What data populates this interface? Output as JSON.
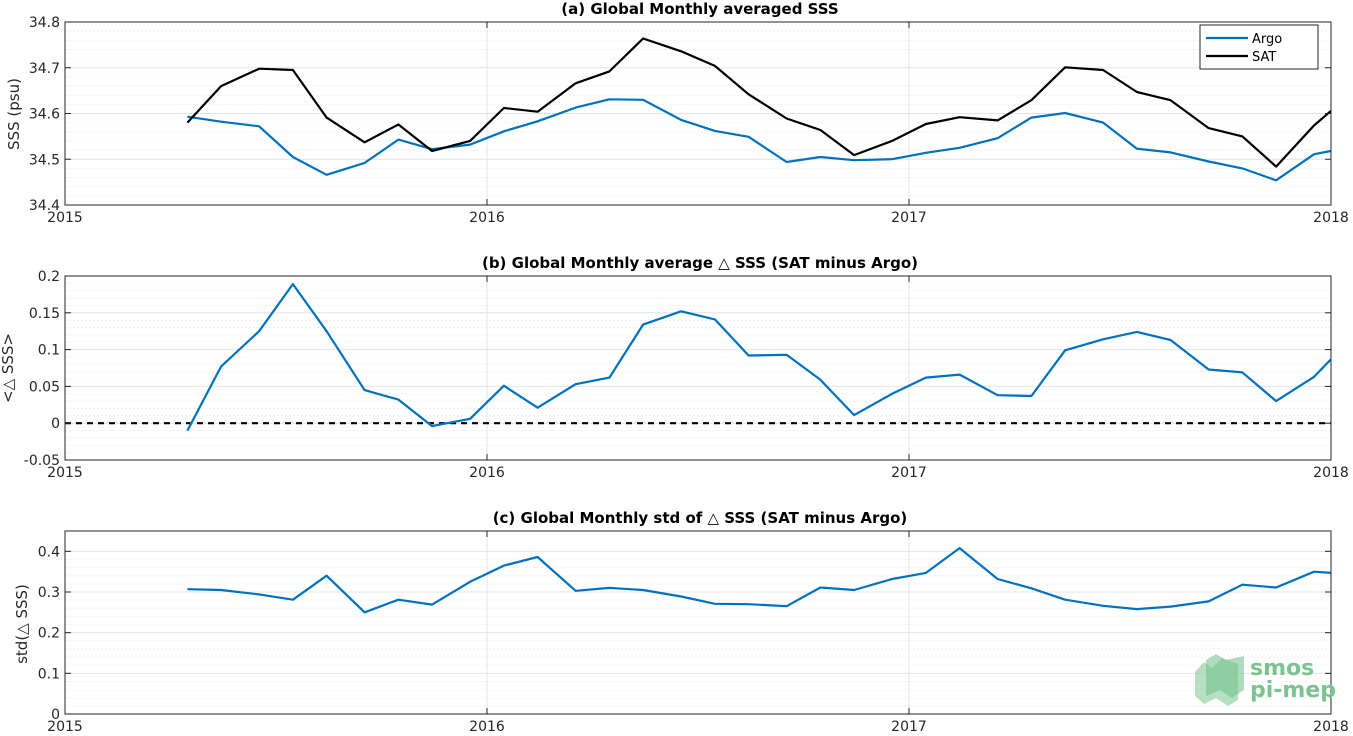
{
  "colors": {
    "argo": "#0072BD",
    "sat": "#000000",
    "grid": "#e4e4e4",
    "axis": "#262626",
    "logo": "#7cc48f"
  },
  "logo": {
    "line1": "smos",
    "line2": "pi-mep"
  },
  "chart_data": [
    {
      "type": "line",
      "title": "(a) Global Monthly averaged SSS",
      "xlabel": "",
      "ylabel": "SSS (psu)",
      "xlim": [
        2015,
        2018
      ],
      "ylim": [
        34.4,
        34.8
      ],
      "xticks": [
        2015,
        2016,
        2017,
        2018
      ],
      "xtick_labels": [
        "2015",
        "2016",
        "2017",
        "2018"
      ],
      "yticks": [
        34.4,
        34.5,
        34.6,
        34.7,
        34.8
      ],
      "ytick_labels": [
        "34.4",
        "34.5",
        "34.6",
        "34.7",
        "34.8"
      ],
      "grid": true,
      "legend": "top-right",
      "x": [
        2015.29,
        2015.37,
        2015.46,
        2015.54,
        2015.62,
        2015.71,
        2015.79,
        2015.87,
        2015.96,
        2016.04,
        2016.12,
        2016.21,
        2016.29,
        2016.37,
        2016.46,
        2016.54,
        2016.62,
        2016.71,
        2016.79,
        2016.87,
        2016.96,
        2017.04,
        2017.12,
        2017.21,
        2017.29,
        2017.37,
        2017.46,
        2017.54,
        2017.62,
        2017.71,
        2017.79,
        2017.87,
        2017.96,
        2018.0
      ],
      "series": [
        {
          "name": "Argo",
          "color": "#0072BD",
          "values": [
            34.593,
            34.582,
            34.572,
            34.505,
            34.466,
            34.492,
            34.543,
            34.522,
            34.532,
            34.561,
            34.583,
            34.613,
            34.631,
            34.63,
            34.586,
            34.562,
            34.549,
            34.494,
            34.505,
            34.498,
            34.5,
            34.514,
            34.525,
            34.546,
            34.591,
            34.601,
            34.58,
            34.523,
            34.515,
            34.495,
            34.48,
            34.454,
            34.511,
            34.518
          ]
        },
        {
          "name": "SAT",
          "color": "#000000",
          "values": [
            34.58,
            34.66,
            34.698,
            34.695,
            34.591,
            34.537,
            34.576,
            34.518,
            34.54,
            34.612,
            34.604,
            34.666,
            34.692,
            34.764,
            34.736,
            34.704,
            34.642,
            34.589,
            34.564,
            34.509,
            34.54,
            34.577,
            34.592,
            34.585,
            34.629,
            34.701,
            34.695,
            34.647,
            34.629,
            34.568,
            34.55,
            34.484,
            34.574,
            34.606
          ]
        }
      ]
    },
    {
      "type": "line",
      "title": "(b) Global Monthly average △ SSS (SAT minus Argo)",
      "xlabel": "",
      "ylabel": "<△ SSS>",
      "xlim": [
        2015,
        2018
      ],
      "ylim": [
        -0.05,
        0.2
      ],
      "xticks": [
        2015,
        2016,
        2017,
        2018
      ],
      "xtick_labels": [
        "2015",
        "2016",
        "2017",
        "2018"
      ],
      "yticks": [
        -0.05,
        0,
        0.05,
        0.1,
        0.15,
        0.2
      ],
      "ytick_labels": [
        "-0.05",
        "0",
        "0.05",
        "0.1",
        "0.15",
        "0.2"
      ],
      "grid": true,
      "reference_line": {
        "y": 0,
        "style": "dashed",
        "color": "#000000"
      },
      "x": [
        2015.29,
        2015.37,
        2015.46,
        2015.54,
        2015.62,
        2015.71,
        2015.79,
        2015.87,
        2015.96,
        2016.04,
        2016.12,
        2016.21,
        2016.29,
        2016.37,
        2016.46,
        2016.54,
        2016.62,
        2016.71,
        2016.79,
        2016.87,
        2016.96,
        2017.04,
        2017.12,
        2017.21,
        2017.29,
        2017.37,
        2017.46,
        2017.54,
        2017.62,
        2017.71,
        2017.79,
        2017.87,
        2017.96,
        2018.0
      ],
      "series": [
        {
          "name": "",
          "color": "#0072BD",
          "values": [
            -0.01,
            0.077,
            0.125,
            0.189,
            0.125,
            0.045,
            0.032,
            -0.004,
            0.006,
            0.051,
            0.021,
            0.053,
            0.062,
            0.134,
            0.152,
            0.141,
            0.092,
            0.093,
            0.059,
            0.011,
            0.04,
            0.062,
            0.066,
            0.038,
            0.037,
            0.099,
            0.114,
            0.124,
            0.113,
            0.073,
            0.069,
            0.03,
            0.063,
            0.087
          ]
        }
      ]
    },
    {
      "type": "line",
      "title": "(c) Global Monthly std of △ SSS (SAT minus Argo)",
      "xlabel": "",
      "ylabel": "std(△ SSS)",
      "xlim": [
        2015,
        2018
      ],
      "ylim": [
        0,
        0.45
      ],
      "xticks": [
        2015,
        2016,
        2017,
        2018
      ],
      "xtick_labels": [
        "2015",
        "2016",
        "2017",
        "2018"
      ],
      "yticks": [
        0,
        0.1,
        0.2,
        0.3,
        0.4
      ],
      "ytick_labels": [
        "0",
        "0.1",
        "0.2",
        "0.3",
        "0.4"
      ],
      "grid": true,
      "x": [
        2015.29,
        2015.37,
        2015.46,
        2015.54,
        2015.62,
        2015.71,
        2015.79,
        2015.87,
        2015.96,
        2016.04,
        2016.12,
        2016.21,
        2016.29,
        2016.37,
        2016.46,
        2016.54,
        2016.62,
        2016.71,
        2016.79,
        2016.87,
        2016.96,
        2017.04,
        2017.12,
        2017.21,
        2017.29,
        2017.37,
        2017.46,
        2017.54,
        2017.62,
        2017.71,
        2017.79,
        2017.87,
        2017.96,
        2018.0
      ],
      "series": [
        {
          "name": "",
          "color": "#0072BD",
          "values": [
            0.307,
            0.305,
            0.294,
            0.281,
            0.34,
            0.25,
            0.281,
            0.269,
            0.325,
            0.365,
            0.386,
            0.303,
            0.31,
            0.305,
            0.289,
            0.271,
            0.27,
            0.265,
            0.311,
            0.305,
            0.332,
            0.347,
            0.408,
            0.332,
            0.309,
            0.281,
            0.266,
            0.258,
            0.264,
            0.277,
            0.318,
            0.311,
            0.35,
            0.347
          ]
        }
      ]
    }
  ]
}
